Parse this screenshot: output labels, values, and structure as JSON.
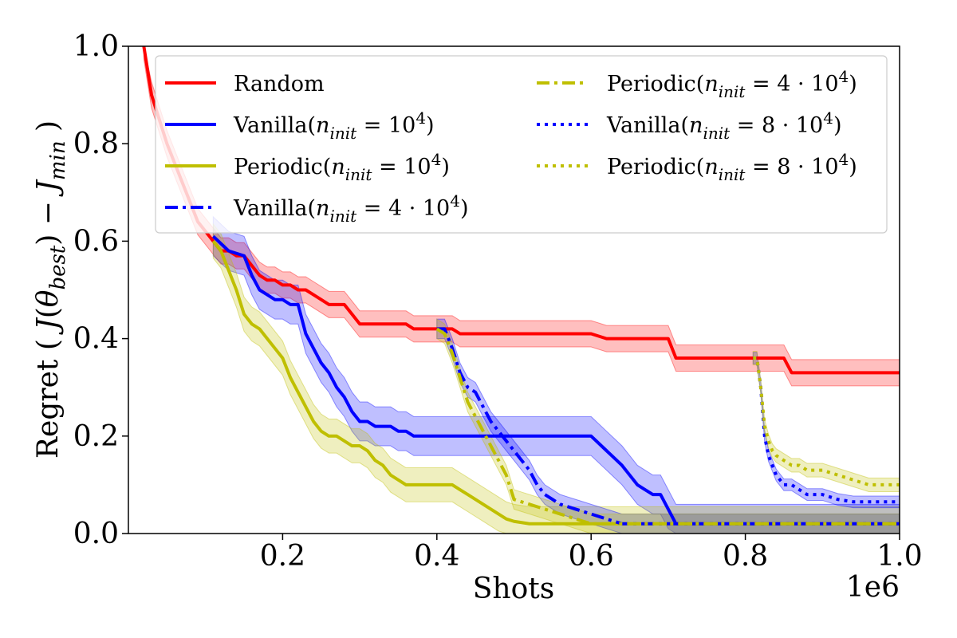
{
  "chart_data": {
    "type": "line",
    "title": "",
    "xlabel": "Shots",
    "ylabel": "Regret ( J(θbest) − Jmin )",
    "x_multiplier_label": "1e6",
    "xlim": [
      0.0,
      1.0
    ],
    "ylim": [
      0.0,
      1.0
    ],
    "x_ticks": [
      0.2,
      0.4,
      0.6,
      0.8,
      1.0
    ],
    "x_tick_labels": [
      "0.2",
      "0.4",
      "0.6",
      "0.8",
      "1.0"
    ],
    "y_ticks": [
      0.0,
      0.2,
      0.4,
      0.6,
      0.8,
      1.0
    ],
    "y_tick_labels": [
      "0.0",
      "0.2",
      "0.4",
      "0.6",
      "0.8",
      "1.0"
    ],
    "legend_position": "top",
    "colors": {
      "Random": "#ff0000",
      "Vanilla": "#0000ff",
      "Periodic": "#bfbf00"
    },
    "series": [
      {
        "name": "Random",
        "legend_base": "Random",
        "legend_math": "",
        "color": "#ff0000",
        "style": "solid",
        "x": [
          0.02,
          0.03,
          0.04,
          0.05,
          0.06,
          0.07,
          0.08,
          0.09,
          0.1,
          0.11,
          0.12,
          0.13,
          0.14,
          0.15,
          0.16,
          0.17,
          0.18,
          0.19,
          0.2,
          0.21,
          0.22,
          0.23,
          0.24,
          0.25,
          0.26,
          0.27,
          0.28,
          0.29,
          0.3,
          0.32,
          0.34,
          0.36,
          0.37,
          0.38,
          0.4,
          0.42,
          0.43,
          0.45,
          0.47,
          0.5,
          0.55,
          0.6,
          0.62,
          0.65,
          0.68,
          0.7,
          0.71,
          0.75,
          0.8,
          0.85,
          0.86,
          0.9,
          1.0
        ],
        "y": [
          1.0,
          0.9,
          0.85,
          0.8,
          0.76,
          0.72,
          0.68,
          0.64,
          0.62,
          0.6,
          0.58,
          0.58,
          0.57,
          0.57,
          0.55,
          0.53,
          0.52,
          0.52,
          0.51,
          0.51,
          0.5,
          0.5,
          0.49,
          0.48,
          0.47,
          0.47,
          0.47,
          0.45,
          0.43,
          0.43,
          0.43,
          0.43,
          0.42,
          0.42,
          0.42,
          0.42,
          0.41,
          0.41,
          0.41,
          0.41,
          0.41,
          0.41,
          0.4,
          0.4,
          0.4,
          0.4,
          0.36,
          0.36,
          0.36,
          0.36,
          0.33,
          0.33,
          0.33
        ],
        "band": 0.027
      },
      {
        "name": "Vanilla(n_init = 10^4)",
        "legend_base": "Vanilla(",
        "legend_math": "n_init = 10^4",
        "color": "#0000ff",
        "style": "solid",
        "x": [
          0.11,
          0.13,
          0.15,
          0.16,
          0.17,
          0.18,
          0.19,
          0.2,
          0.21,
          0.22,
          0.23,
          0.24,
          0.25,
          0.26,
          0.27,
          0.28,
          0.29,
          0.3,
          0.31,
          0.32,
          0.33,
          0.34,
          0.35,
          0.36,
          0.37,
          0.38,
          0.39,
          0.4,
          0.42,
          0.44,
          0.46,
          0.48,
          0.5,
          0.55,
          0.6,
          0.62,
          0.64,
          0.65,
          0.66,
          0.67,
          0.68,
          0.69,
          0.7,
          0.71,
          0.75,
          0.8,
          0.9,
          1.0
        ],
        "y": [
          0.61,
          0.58,
          0.57,
          0.53,
          0.5,
          0.49,
          0.48,
          0.48,
          0.47,
          0.47,
          0.41,
          0.38,
          0.35,
          0.33,
          0.3,
          0.28,
          0.25,
          0.23,
          0.23,
          0.22,
          0.22,
          0.22,
          0.21,
          0.21,
          0.2,
          0.2,
          0.2,
          0.2,
          0.2,
          0.2,
          0.2,
          0.2,
          0.2,
          0.2,
          0.2,
          0.17,
          0.14,
          0.12,
          0.1,
          0.09,
          0.08,
          0.08,
          0.05,
          0.02,
          0.02,
          0.02,
          0.02,
          0.02
        ],
        "band": 0.04
      },
      {
        "name": "Periodic(n_init = 10^4)",
        "legend_base": "Periodic(",
        "legend_math": "n_init = 10^4",
        "color": "#bfbf00",
        "style": "solid",
        "x": [
          0.11,
          0.12,
          0.13,
          0.14,
          0.15,
          0.16,
          0.17,
          0.18,
          0.19,
          0.2,
          0.21,
          0.22,
          0.23,
          0.24,
          0.25,
          0.26,
          0.27,
          0.28,
          0.29,
          0.3,
          0.31,
          0.32,
          0.33,
          0.34,
          0.35,
          0.36,
          0.37,
          0.38,
          0.39,
          0.4,
          0.41,
          0.42,
          0.43,
          0.44,
          0.45,
          0.46,
          0.47,
          0.48,
          0.49,
          0.5,
          0.52,
          0.55,
          0.6,
          0.7,
          0.8,
          0.9,
          1.0
        ],
        "y": [
          0.6,
          0.58,
          0.54,
          0.5,
          0.45,
          0.43,
          0.42,
          0.4,
          0.38,
          0.36,
          0.32,
          0.29,
          0.26,
          0.23,
          0.21,
          0.2,
          0.2,
          0.19,
          0.18,
          0.18,
          0.17,
          0.15,
          0.14,
          0.12,
          0.11,
          0.1,
          0.1,
          0.1,
          0.1,
          0.1,
          0.1,
          0.1,
          0.09,
          0.08,
          0.07,
          0.06,
          0.05,
          0.04,
          0.03,
          0.025,
          0.02,
          0.02,
          0.02,
          0.02,
          0.02,
          0.02,
          0.02
        ],
        "band": 0.035
      },
      {
        "name": "Vanilla(n_init = 4·10^4)",
        "legend_base": "Vanilla(",
        "legend_math": "n_init = 4 · 10^4",
        "color": "#0000ff",
        "style": "dashdot",
        "x": [
          0.4,
          0.41,
          0.42,
          0.43,
          0.44,
          0.45,
          0.46,
          0.47,
          0.48,
          0.49,
          0.5,
          0.51,
          0.52,
          0.53,
          0.54,
          0.55,
          0.56,
          0.57,
          0.58,
          0.59,
          0.6,
          0.61,
          0.62,
          0.63,
          0.64,
          0.65,
          0.7,
          0.8,
          0.9,
          1.0
        ],
        "y": [
          0.42,
          0.42,
          0.38,
          0.33,
          0.3,
          0.29,
          0.26,
          0.23,
          0.21,
          0.19,
          0.17,
          0.15,
          0.13,
          0.1,
          0.08,
          0.07,
          0.06,
          0.055,
          0.05,
          0.045,
          0.04,
          0.035,
          0.03,
          0.025,
          0.02,
          0.02,
          0.02,
          0.02,
          0.02,
          0.02
        ],
        "band": 0.02
      },
      {
        "name": "Periodic(n_init = 4·10^4)",
        "legend_base": "Periodic(",
        "legend_math": "n_init = 4 · 10^4",
        "color": "#bfbf00",
        "style": "dashdot",
        "x": [
          0.4,
          0.41,
          0.42,
          0.43,
          0.44,
          0.45,
          0.46,
          0.47,
          0.48,
          0.49,
          0.5,
          0.51,
          0.52,
          0.53,
          0.54,
          0.55,
          0.56,
          0.57,
          0.58,
          0.59,
          0.6,
          0.62,
          0.65,
          0.7,
          0.8,
          0.9,
          1.0
        ],
        "y": [
          0.42,
          0.41,
          0.37,
          0.32,
          0.27,
          0.24,
          0.21,
          0.18,
          0.15,
          0.12,
          0.07,
          0.065,
          0.06,
          0.055,
          0.05,
          0.045,
          0.04,
          0.035,
          0.03,
          0.025,
          0.02,
          0.02,
          0.02,
          0.02,
          0.02,
          0.02,
          0.02
        ],
        "band": 0.02
      },
      {
        "name": "Vanilla(n_init = 8·10^4)",
        "legend_base": "Vanilla(",
        "legend_math": "n_init = 8 · 10^4",
        "color": "#0000ff",
        "style": "dotted",
        "x": [
          0.81,
          0.815,
          0.82,
          0.825,
          0.83,
          0.835,
          0.84,
          0.85,
          0.86,
          0.87,
          0.88,
          0.9,
          0.92,
          0.94,
          0.96,
          0.98,
          1.0
        ],
        "y": [
          0.36,
          0.36,
          0.3,
          0.2,
          0.16,
          0.14,
          0.12,
          0.1,
          0.1,
          0.09,
          0.08,
          0.08,
          0.07,
          0.065,
          0.065,
          0.065,
          0.065
        ],
        "band": 0.012
      },
      {
        "name": "Periodic(n_init = 8·10^4)",
        "legend_base": "Periodic(",
        "legend_math": "n_init = 8 · 10^4",
        "color": "#bfbf00",
        "style": "dotted",
        "x": [
          0.81,
          0.815,
          0.82,
          0.825,
          0.83,
          0.835,
          0.84,
          0.85,
          0.86,
          0.87,
          0.88,
          0.9,
          0.92,
          0.94,
          0.96,
          0.98,
          1.0
        ],
        "y": [
          0.36,
          0.36,
          0.3,
          0.22,
          0.19,
          0.17,
          0.16,
          0.15,
          0.14,
          0.14,
          0.13,
          0.13,
          0.12,
          0.11,
          0.1,
          0.1,
          0.1
        ],
        "band": 0.014
      }
    ]
  }
}
